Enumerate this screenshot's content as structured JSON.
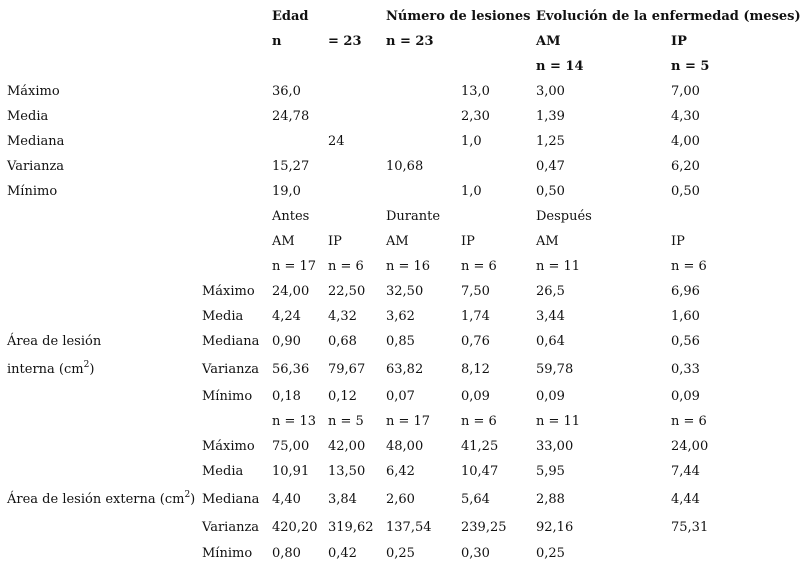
{
  "table1": {
    "headers": {
      "edad": "Edad",
      "numero_lesiones": "Número de lesiones",
      "evolucion": "Evolución de la enfermedad (meses)"
    },
    "subheaders": {
      "edad_n": "n",
      "edad_eq": "= 23",
      "lesiones_n": "n = 23",
      "am": "AM",
      "ip": "IP",
      "am_n": "n = 14",
      "ip_n": "n = 5"
    },
    "rows": [
      {
        "label": "Máximo",
        "edad": "36,0",
        "edad2": "",
        "les1": "",
        "les2": "13,0",
        "am": "3,00",
        "ip": "7,00"
      },
      {
        "label": "Media",
        "edad": "24,78",
        "edad2": "",
        "les1": "",
        "les2": "2,30",
        "am": "1,39",
        "ip": "4,30"
      },
      {
        "label": "Mediana",
        "edad": "",
        "edad2": "24",
        "les1": "",
        "les2": "1,0",
        "am": "1,25",
        "ip": "4,00"
      },
      {
        "label": "Varianza",
        "edad": "15,27",
        "edad2": "",
        "les1": "10,68",
        "les2": "",
        "am": "0,47",
        "ip": "6,20"
      },
      {
        "label": "Mínimo",
        "edad": "19,0",
        "edad2": "",
        "les1": "",
        "les2": "1,0",
        "am": "0,50",
        "ip": "0,50"
      }
    ]
  },
  "table2": {
    "periods": {
      "antes": "Antes",
      "durante": "Durante",
      "despues": "Después"
    },
    "groups": [
      "AM",
      "IP",
      "AM",
      "IP",
      "AM",
      "IP"
    ],
    "interna": {
      "label_line1": "Área de lesión",
      "label_line2": "interna (cm",
      "label_sup": "2",
      "label_close": ")",
      "n": [
        "n = 17",
        "n = 6",
        "n = 16",
        "n = 6",
        "n = 11",
        "n = 6"
      ],
      "rows": [
        {
          "stat": "Máximo",
          "values": [
            "24,00",
            "22,50",
            "32,50",
            "7,50",
            "26,5",
            "6,96"
          ]
        },
        {
          "stat": "Media",
          "values": [
            "4,24",
            "4,32",
            "3,62",
            "1,74",
            "3,44",
            "1,60"
          ]
        },
        {
          "stat": "Mediana",
          "values": [
            "0,90",
            "0,68",
            "0,85",
            "0,76",
            "0,64",
            "0,56"
          ]
        },
        {
          "stat": "Varianza",
          "values": [
            "56,36",
            "79,67",
            "63,82",
            "8,12",
            "59,78",
            "0,33"
          ]
        },
        {
          "stat": "Mínimo",
          "values": [
            "0,18",
            "0,12",
            "0,07",
            "0,09",
            "0,09",
            "0,09"
          ]
        }
      ]
    },
    "externa": {
      "label": "Área de lesión externa (cm",
      "label_sup": "2",
      "label_close": ")",
      "n": [
        "n = 13",
        "n = 5",
        "n = 17",
        "n = 6",
        "n = 11",
        "n = 6"
      ],
      "rows": [
        {
          "stat": "Máximo",
          "values": [
            "75,00",
            "42,00",
            "48,00",
            "41,25",
            "33,00",
            "24,00"
          ]
        },
        {
          "stat": "Media",
          "values": [
            "10,91",
            "13,50",
            "6,42",
            "10,47",
            "5,95",
            "7,44"
          ]
        },
        {
          "stat": "Mediana",
          "values": [
            "4,40",
            "3,84",
            "2,60",
            "5,64",
            "2,88",
            "4,44"
          ]
        },
        {
          "stat": "Varianza",
          "values": [
            "420,20",
            "319,62",
            "137,54",
            "239,25",
            "92,16",
            "75,31"
          ]
        },
        {
          "stat": "Mínimo",
          "values": [
            "0,80",
            "0,42",
            "0,25",
            "0,30",
            "0,25",
            ""
          ]
        }
      ]
    }
  }
}
